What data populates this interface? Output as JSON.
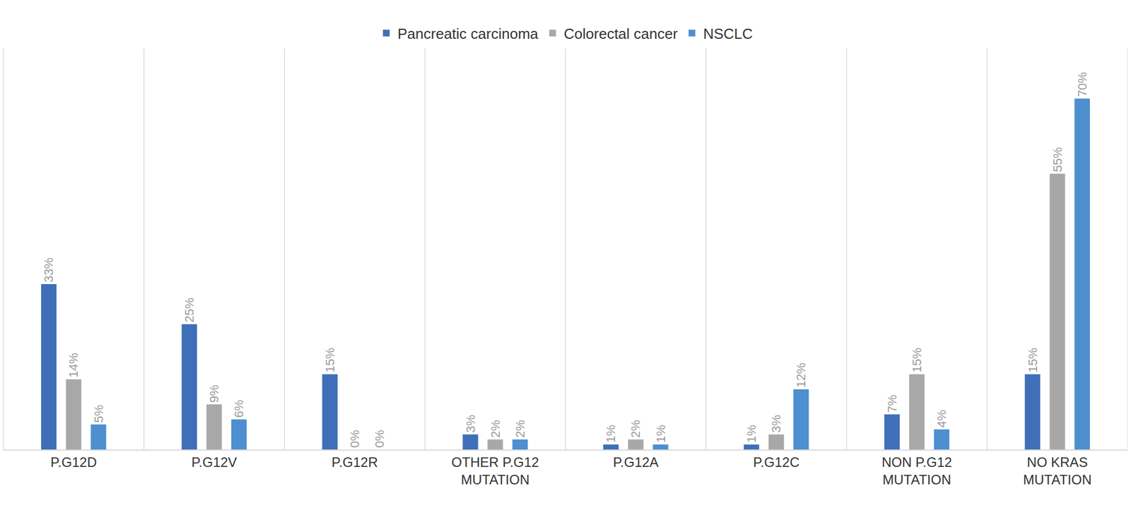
{
  "chart_data": {
    "type": "bar",
    "categories": [
      "P.G12D",
      "P.G12V",
      "P.G12R",
      "OTHER P.G12 MUTATION",
      "P.G12A",
      "P.G12C",
      "NON P.G12 MUTATION",
      "NO KRAS MUTATION"
    ],
    "series": [
      {
        "name": "Pancreatic carcinoma",
        "color": "#3f6fb8",
        "values": [
          33,
          25,
          15,
          3,
          1,
          1,
          7,
          15
        ],
        "value_labels": [
          "33%",
          "25%",
          "15%",
          "3%",
          "1%",
          "1%",
          "7%",
          "15%"
        ]
      },
      {
        "name": "Colorectal cancer",
        "color": "#a8a8a8",
        "values": [
          14,
          9,
          0,
          2,
          2,
          3,
          15,
          55
        ],
        "value_labels": [
          "14%",
          "9%",
          "0%",
          "2%",
          "2%",
          "3%",
          "15%",
          "55%"
        ]
      },
      {
        "name": "NSCLC",
        "color": "#4d8fcf",
        "values": [
          5,
          6,
          0,
          2,
          1,
          12,
          4,
          70
        ],
        "value_labels": [
          "5%",
          "6%",
          "0%",
          "2%",
          "1%",
          "12%",
          "4%",
          "70%"
        ]
      }
    ],
    "ylim": [
      0,
      80
    ],
    "grid": true,
    "legend": "top",
    "data_labels": true,
    "tick_labels": "x"
  }
}
